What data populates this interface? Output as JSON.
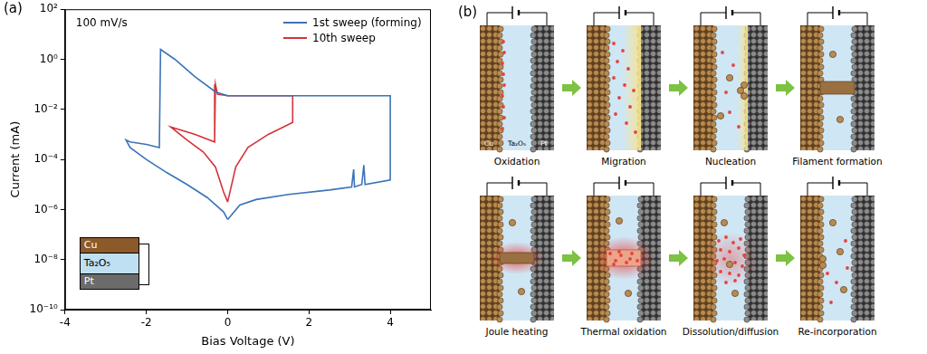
{
  "chart_data": {
    "type": "line",
    "x_label": "Bias Voltage (V)",
    "y_label": "Current (mA)",
    "annotations": [
      "(a)",
      "100 mV/s"
    ],
    "inset": [
      "Cu",
      "Ta₂O₅",
      "Pt"
    ],
    "log": "y",
    "grid": false,
    "legend": "upper right",
    "xlim": [
      -4,
      5
    ],
    "xticks": [
      -4,
      -2,
      0,
      2,
      4
    ],
    "ylim": [
      1e-10,
      100
    ],
    "yticks": [
      {
        "value": 1e-10,
        "label": "10⁻¹⁰"
      },
      {
        "value": 1e-08,
        "label": "10⁻⁸"
      },
      {
        "value": 1e-06,
        "label": "10⁻⁶"
      },
      {
        "value": 0.0001,
        "label": "10⁻⁴"
      },
      {
        "value": 0.01,
        "label": "10⁻²"
      },
      {
        "value": 1,
        "label": "10⁰"
      },
      {
        "value": 100,
        "label": "10²"
      }
    ],
    "series": [
      {
        "name": "1st sweep (forming)",
        "color": "#3a73b8",
        "x": [
          0,
          0.3,
          0.7,
          1.5,
          2.5,
          3.05,
          3.1,
          3.12,
          3.3,
          3.35,
          3.38,
          4.0,
          4.0,
          2,
          0.5,
          0,
          -0.3,
          -0.8,
          -1.3,
          -1.65,
          -1.68,
          -2.0,
          -2.4,
          -2.5,
          -2.4,
          -2.0,
          -1.5,
          -1.0,
          -0.5,
          -0.1,
          0
        ],
        "values": [
          4e-07,
          1.5e-06,
          2.5e-06,
          4e-06,
          6e-06,
          8e-06,
          4e-05,
          8e-06,
          1e-05,
          6e-05,
          1e-05,
          1.5e-05,
          0.035,
          0.035,
          0.035,
          0.035,
          0.05,
          0.2,
          1,
          2.5,
          0.0003,
          0.0004,
          0.0005,
          0.0006,
          0.0003,
          0.0001,
          3e-05,
          1e-05,
          3e-06,
          8e-07,
          4e-07
        ]
      },
      {
        "name": "10th sweep",
        "color": "#d2343a",
        "x": [
          0,
          0.2,
          0.5,
          1.0,
          1.6,
          1.6,
          0.8,
          0,
          -0.25,
          -0.3,
          -0.32,
          -0.8,
          -1.4,
          -1.0,
          -0.6,
          -0.3,
          -0.1,
          0
        ],
        "values": [
          2e-06,
          5e-05,
          0.0003,
          0.001,
          0.003,
          0.035,
          0.035,
          0.035,
          0.04,
          0.1,
          0.0005,
          0.001,
          0.002,
          0.0006,
          0.0002,
          5e-05,
          5e-06,
          2e-06
        ]
      }
    ]
  },
  "diagram": {
    "label": "(b)",
    "layers": [
      "Cu",
      "Ta₂O₅",
      "Pt"
    ],
    "steps": [
      "Oxidation",
      "Migration",
      "Nucleation",
      "Filament formation",
      "Joule heating",
      "Thermal oxidation",
      "Dissolution/diffusion",
      "Re-incorporation"
    ]
  }
}
